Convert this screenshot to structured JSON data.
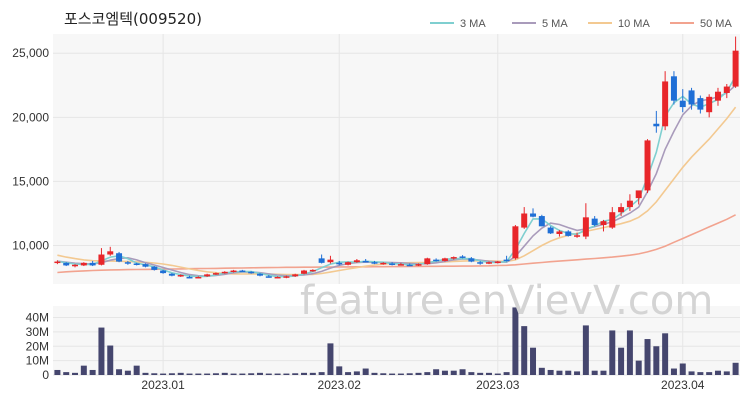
{
  "title": "포스코엠텍(009520)",
  "watermark": "feature.enVievV.com",
  "chart_data": [
    {
      "type": "candlestick",
      "ylim": [
        7000,
        26500
      ],
      "y_ticks": [
        10000,
        15000,
        20000,
        25000
      ],
      "y_tick_labels": [
        "10,000",
        "15,000",
        "20,000",
        "25,000"
      ],
      "x_tick_labels": [
        {
          "label": "2023.01",
          "index": 12
        },
        {
          "label": "2023.02",
          "index": 32
        },
        {
          "label": "2023.03",
          "index": 50
        },
        {
          "label": "2023.04",
          "index": 71
        }
      ],
      "colors": {
        "up": "#e8262a",
        "down": "#1f6fd6",
        "grid": "#e6e6e6",
        "plot_bg": "#f7f7f7"
      },
      "legend_position": "top-right",
      "legend": [
        {
          "name": "3 MA",
          "color": "#7fcfd0"
        },
        {
          "name": "5 MA",
          "color": "#a99bbb"
        },
        {
          "name": "10 MA",
          "color": "#f3c991"
        },
        {
          "name": "50 MA",
          "color": "#f2a38f"
        }
      ],
      "ohlc": [
        [
          8700,
          8850,
          8550,
          8750
        ],
        [
          8650,
          8700,
          8400,
          8450
        ],
        [
          8400,
          8550,
          8300,
          8500
        ],
        [
          8450,
          8700,
          8400,
          8650
        ],
        [
          8650,
          8800,
          8400,
          8450
        ],
        [
          8500,
          9800,
          8450,
          9300
        ],
        [
          9300,
          9900,
          9200,
          9550
        ],
        [
          9400,
          9500,
          8700,
          8750
        ],
        [
          8700,
          8800,
          8500,
          8600
        ],
        [
          8600,
          8650,
          8450,
          8550
        ],
        [
          8550,
          8600,
          8300,
          8350
        ],
        [
          8350,
          8400,
          8050,
          8100
        ],
        [
          8050,
          8100,
          7800,
          7850
        ],
        [
          7800,
          7850,
          7600,
          7650
        ],
        [
          7650,
          7750,
          7550,
          7700
        ],
        [
          7550,
          7650,
          7450,
          7500
        ],
        [
          7500,
          7600,
          7450,
          7550
        ],
        [
          7600,
          7800,
          7550,
          7750
        ],
        [
          7750,
          7900,
          7700,
          7850
        ],
        [
          7850,
          8000,
          7800,
          7950
        ],
        [
          7950,
          8100,
          7900,
          8050
        ],
        [
          8050,
          8100,
          7950,
          8000
        ],
        [
          7950,
          8000,
          7800,
          7850
        ],
        [
          7800,
          7850,
          7600,
          7650
        ],
        [
          7600,
          7700,
          7500,
          7550
        ],
        [
          7500,
          7600,
          7450,
          7550
        ],
        [
          7500,
          7650,
          7450,
          7600
        ],
        [
          7600,
          7800,
          7550,
          7750
        ],
        [
          7800,
          8100,
          7750,
          8050
        ],
        [
          8050,
          8150,
          7950,
          8100
        ],
        [
          9000,
          9300,
          8600,
          8650
        ],
        [
          8700,
          9200,
          8600,
          8900
        ],
        [
          8650,
          8800,
          8450,
          8550
        ],
        [
          8500,
          8750,
          8450,
          8700
        ],
        [
          8700,
          8950,
          8650,
          8850
        ],
        [
          8800,
          8950,
          8700,
          8750
        ],
        [
          8700,
          8800,
          8550,
          8600
        ],
        [
          8550,
          8700,
          8500,
          8650
        ],
        [
          8600,
          8700,
          8450,
          8500
        ],
        [
          8500,
          8650,
          8450,
          8550
        ],
        [
          8500,
          8600,
          8400,
          8450
        ],
        [
          8450,
          8600,
          8400,
          8550
        ],
        [
          8550,
          9050,
          8500,
          9000
        ],
        [
          8900,
          9000,
          8750,
          8800
        ],
        [
          8800,
          9050,
          8750,
          9000
        ],
        [
          9000,
          9150,
          8900,
          9100
        ],
        [
          9150,
          9250,
          9000,
          9050
        ],
        [
          9000,
          9100,
          8700,
          8750
        ],
        [
          8700,
          8800,
          8500,
          8600
        ],
        [
          8600,
          8750,
          8550,
          8700
        ],
        [
          8700,
          8800,
          8600,
          8750
        ],
        [
          8900,
          9200,
          8750,
          8800
        ],
        [
          9000,
          11600,
          8900,
          11500
        ],
        [
          11400,
          13000,
          11300,
          12500
        ],
        [
          12500,
          12900,
          12200,
          12250
        ],
        [
          12300,
          12400,
          11500,
          11500
        ],
        [
          11400,
          11500,
          10900,
          10950
        ],
        [
          10900,
          11200,
          10700,
          11100
        ],
        [
          11100,
          11200,
          10700,
          10750
        ],
        [
          10750,
          11000,
          10600,
          10800
        ],
        [
          10700,
          13300,
          10500,
          12200
        ],
        [
          12100,
          12300,
          11500,
          11600
        ],
        [
          11600,
          12000,
          11100,
          11900
        ],
        [
          11400,
          13000,
          11300,
          12600
        ],
        [
          12600,
          13300,
          12300,
          13000
        ],
        [
          13000,
          14000,
          12700,
          13500
        ],
        [
          13700,
          14200,
          13200,
          14300
        ],
        [
          14300,
          18300,
          14100,
          18200
        ],
        [
          19500,
          20500,
          18800,
          19300
        ],
        [
          19300,
          23600,
          19000,
          22800
        ],
        [
          23200,
          23600,
          21000,
          21300
        ],
        [
          21300,
          22200,
          20400,
          20800
        ],
        [
          22100,
          22300,
          20600,
          21000
        ],
        [
          21500,
          21700,
          20300,
          20600
        ],
        [
          20400,
          21800,
          20000,
          21600
        ],
        [
          21300,
          22300,
          20900,
          22000
        ],
        [
          21900,
          22600,
          21500,
          22400
        ],
        [
          22400,
          26300,
          22300,
          25200
        ]
      ],
      "ma3": [
        8760,
        8660,
        8560,
        8520,
        8520,
        8800,
        9100,
        9200,
        8970,
        8630,
        8500,
        8330,
        8100,
        7870,
        7730,
        7620,
        7580,
        7600,
        7700,
        7850,
        7950,
        7970,
        7970,
        7830,
        7680,
        7580,
        7570,
        7630,
        7780,
        7970,
        8270,
        8550,
        8700,
        8720,
        8700,
        8770,
        8730,
        8700,
        8580,
        8570,
        8500,
        8520,
        8670,
        8780,
        8930,
        8970,
        8980,
        8970,
        8800,
        8680,
        8680,
        8750,
        9680,
        10940,
        12080,
        12080,
        11570,
        11180,
        10940,
        10880,
        11250,
        11530,
        11900,
        12030,
        12500,
        13030,
        13600,
        15330,
        17270,
        20100,
        21130,
        21630,
        21030,
        20800,
        21070,
        21400,
        22000,
        23200
      ],
      "ma5": [
        8780,
        8700,
        8620,
        8580,
        8560,
        8660,
        8860,
        8990,
        9040,
        8880,
        8660,
        8480,
        8290,
        8090,
        7900,
        7730,
        7650,
        7610,
        7660,
        7760,
        7870,
        7930,
        7940,
        7880,
        7790,
        7700,
        7650,
        7660,
        7700,
        7800,
        7980,
        8240,
        8450,
        8590,
        8670,
        8710,
        8680,
        8690,
        8680,
        8650,
        8610,
        8570,
        8580,
        8650,
        8760,
        8890,
        8960,
        8930,
        8860,
        8770,
        8720,
        8700,
        9150,
        9950,
        10750,
        11350,
        11750,
        11640,
        11400,
        11180,
        11300,
        11480,
        11650,
        11850,
        12180,
        12530,
        13000,
        14200,
        15600,
        17500,
        18900,
        20200,
        20900,
        21300,
        21400,
        21600,
        21900,
        22500
      ],
      "ma10": [
        9250,
        9100,
        8980,
        8880,
        8820,
        8800,
        8790,
        8780,
        8750,
        8720,
        8690,
        8640,
        8560,
        8450,
        8320,
        8180,
        8050,
        7950,
        7880,
        7820,
        7790,
        7780,
        7790,
        7790,
        7780,
        7760,
        7740,
        7730,
        7730,
        7750,
        7820,
        7930,
        8050,
        8170,
        8280,
        8390,
        8480,
        8560,
        8610,
        8640,
        8660,
        8670,
        8680,
        8690,
        8720,
        8760,
        8790,
        8810,
        8810,
        8800,
        8780,
        8760,
        8880,
        9200,
        9600,
        10000,
        10350,
        10600,
        10800,
        10950,
        11100,
        11250,
        11400,
        11550,
        11700,
        11900,
        12200,
        12700,
        13400,
        14300,
        15200,
        16100,
        16900,
        17600,
        18300,
        19100,
        19900,
        20800
      ],
      "ma50": [
        7900,
        7950,
        7990,
        8020,
        8050,
        8080,
        8100,
        8110,
        8120,
        8130,
        8140,
        8150,
        8160,
        8170,
        8180,
        8190,
        8200,
        8210,
        8220,
        8230,
        8240,
        8250,
        8260,
        8270,
        8280,
        8290,
        8300,
        8300,
        8310,
        8310,
        8320,
        8320,
        8330,
        8330,
        8340,
        8340,
        8350,
        8350,
        8360,
        8360,
        8370,
        8370,
        8380,
        8380,
        8390,
        8390,
        8400,
        8400,
        8410,
        8420,
        8440,
        8460,
        8500,
        8560,
        8620,
        8680,
        8740,
        8790,
        8840,
        8890,
        8940,
        8990,
        9040,
        9100,
        9170,
        9250,
        9350,
        9500,
        9700,
        9950,
        10250,
        10550,
        10850,
        11150,
        11450,
        11750,
        12050,
        12400
      ]
    },
    {
      "type": "bar",
      "ylim": [
        0,
        48
      ],
      "unit": "M",
      "y_ticks": [
        0,
        10,
        20,
        30,
        40
      ],
      "y_tick_labels": [
        "0",
        "10M",
        "20M",
        "30M",
        "40M"
      ],
      "bar_color": "#45466e",
      "values": [
        3.5,
        2,
        1.5,
        6.5,
        3.5,
        33,
        20.5,
        4,
        3,
        6.5,
        1.5,
        1.2,
        1,
        1.2,
        1.5,
        1,
        1,
        1,
        1.2,
        1.5,
        1,
        1,
        1.2,
        1.5,
        1,
        1,
        1,
        1.2,
        1.5,
        1.5,
        2,
        22,
        6,
        2,
        2.5,
        4.5,
        1.5,
        1.2,
        1,
        1,
        1.2,
        1.5,
        2,
        4,
        3,
        3,
        4,
        2,
        1.5,
        1.5,
        1,
        2,
        47,
        34,
        19,
        5,
        3.5,
        3,
        3,
        2.5,
        34.5,
        3,
        3,
        31,
        19,
        31,
        10,
        25,
        20,
        29,
        4.5,
        8,
        2.5,
        2,
        2,
        3,
        2.5,
        8.5
      ]
    }
  ]
}
